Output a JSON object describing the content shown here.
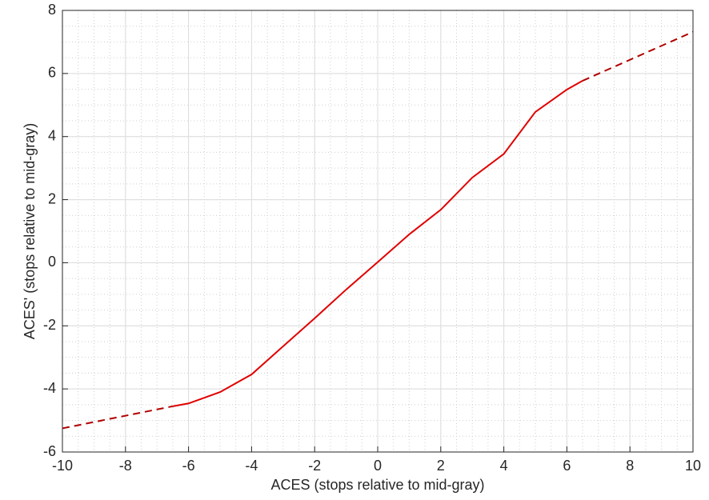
{
  "chart_data": {
    "type": "line",
    "xlabel": "ACES (stops relative to mid-gray)",
    "ylabel": "ACES' (stops relative to mid-gray)",
    "xlim": [
      -10,
      10
    ],
    "xticks": [
      -10,
      -8,
      -6,
      -4,
      -2,
      0,
      2,
      4,
      6,
      8,
      10
    ],
    "ylim": [
      -6,
      8
    ],
    "yticks": [
      -6,
      -4,
      -2,
      0,
      2,
      4,
      6,
      8
    ],
    "grid": true,
    "minor_grid": true,
    "xminor": 0.5,
    "yminor": 0.5,
    "series": [
      {
        "color": "#e00000",
        "dash": false,
        "x": [
          -6.5,
          -6,
          -5,
          -4,
          -3,
          -2,
          -1,
          0,
          1,
          2,
          3,
          4,
          5,
          6,
          6.5
        ],
        "values": [
          -4.55,
          -4.46,
          -4.1,
          -3.54,
          -2.65,
          -1.76,
          -0.85,
          0.02,
          0.9,
          1.68,
          2.7,
          3.45,
          4.78,
          5.49,
          5.77
        ]
      },
      {
        "color": "#b00000",
        "dash": true,
        "x": [
          -10,
          -6.5
        ],
        "values": [
          -5.25,
          -4.55
        ]
      },
      {
        "color": "#b00000",
        "dash": true,
        "x": [
          6.5,
          10
        ],
        "values": [
          5.77,
          7.32
        ]
      }
    ]
  }
}
